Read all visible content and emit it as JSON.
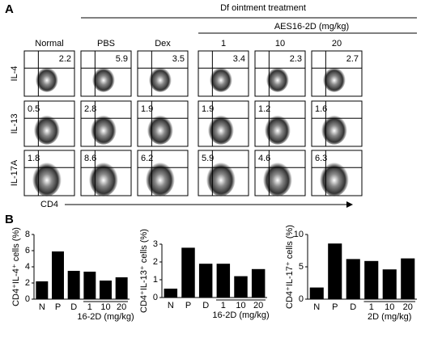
{
  "panel_a": {
    "label": "A",
    "treatment": "Df ointment treatment",
    "group": "AES16-2D (mg/kg)",
    "columns": [
      "Normal",
      "PBS",
      "Dex",
      "1",
      "10",
      "20"
    ],
    "rows": [
      {
        "marker": "IL-4",
        "values": [
          "2.2",
          "5.9",
          "3.5",
          "3.4",
          "2.3",
          "2.7"
        ]
      },
      {
        "marker": "IL-13",
        "values": [
          "0.5",
          "2.8",
          "1.9",
          "1.9",
          "1.2",
          "1.6"
        ]
      },
      {
        "marker": "IL-17A",
        "values": [
          "1.8",
          "8.6",
          "6.2",
          "5.9",
          "4.6",
          "6.3"
        ]
      }
    ],
    "x_axis": "CD4"
  },
  "panel_b_label": "B",
  "chart_data": [
    {
      "type": "bar",
      "ylabel": "CD4⁺IL-4⁺ cells (%)",
      "categories": [
        "N",
        "P",
        "D",
        "1",
        "10",
        "20"
      ],
      "group_label": "16-2D (mg/kg)",
      "values": [
        2.2,
        5.9,
        3.5,
        3.4,
        2.3,
        2.7
      ],
      "color": "#000000",
      "ylim": [
        0,
        8
      ],
      "yticks": [
        0,
        2,
        4,
        6,
        8
      ]
    },
    {
      "type": "bar",
      "ylabel": "CD4⁺IL-13⁺ cells (%)",
      "categories": [
        "N",
        "P",
        "D",
        "1",
        "10",
        "20"
      ],
      "group_label": "16-2D (mg/kg)",
      "values": [
        0.5,
        2.8,
        1.9,
        1.9,
        1.2,
        1.6
      ],
      "color": "#000000",
      "ylim": [
        0,
        3
      ],
      "yticks": [
        0,
        1,
        2,
        3
      ]
    },
    {
      "type": "bar",
      "ylabel": "CD4⁺IL-17⁺ cells (%)",
      "categories": [
        "N",
        "P",
        "D",
        "1",
        "10",
        "20"
      ],
      "group_label": "2D (mg/kg)",
      "values": [
        1.8,
        8.6,
        6.2,
        5.9,
        4.6,
        6.3
      ],
      "color": "#000000",
      "ylim": [
        0,
        10
      ],
      "yticks": [
        0,
        5,
        10
      ]
    }
  ]
}
